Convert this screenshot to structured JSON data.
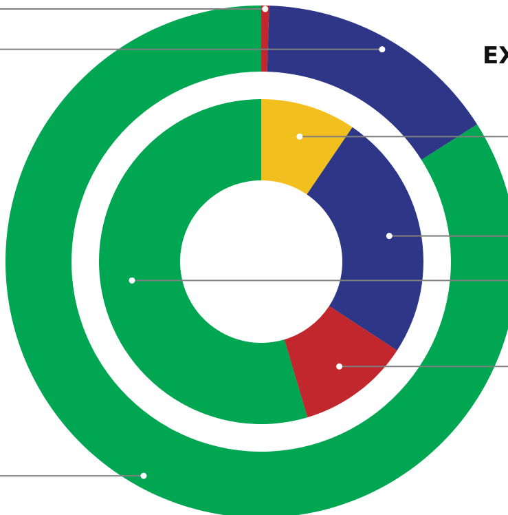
{
  "chart_data": {
    "type": "pie",
    "variant": "nested-donut",
    "title": "EX",
    "rings": [
      {
        "ring": "outer",
        "slices": [
          {
            "value": 0.5,
            "color": "#C1272D"
          },
          {
            "value": 15.5,
            "color": "#2E3787"
          },
          {
            "value": 84.0,
            "color": "#00A651"
          }
        ]
      },
      {
        "ring": "inner",
        "slices": [
          {
            "value": 9.5,
            "color": "#F2C01E"
          },
          {
            "value": 24.7,
            "color": "#2E3787"
          },
          {
            "value": 11.2,
            "color": "#C1272D"
          },
          {
            "value": 54.6,
            "color": "#00A651"
          }
        ]
      }
    ],
    "legend": "none",
    "grid": false
  }
}
